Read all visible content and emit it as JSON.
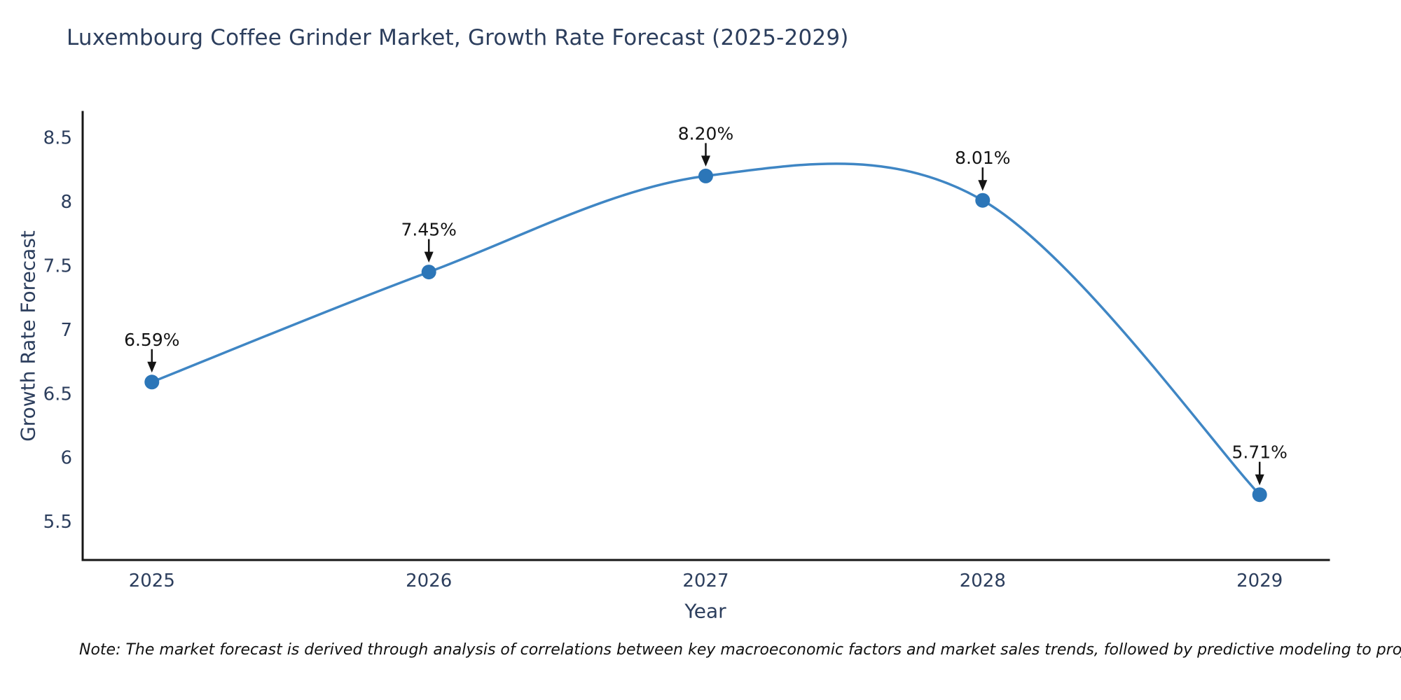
{
  "note": {
    "text": "Note: The market forecast is derived through analysis of correlations between key macroeconomic factors and market sales trends, followed by predictive modeling to project future sales"
  },
  "chart_data": {
    "type": "line",
    "title": "Luxembourg Coffee Grinder Market, Growth Rate Forecast (2025-2029)",
    "xlabel": "Year",
    "ylabel": "Growth Rate Forecast",
    "x": [
      2025,
      2026,
      2027,
      2028,
      2029
    ],
    "series": [
      {
        "name": "Growth Rate Forecast",
        "values": [
          6.59,
          7.45,
          8.2,
          8.01,
          5.71
        ]
      }
    ],
    "point_labels": [
      "6.59%",
      "7.45%",
      "8.20%",
      "8.01%",
      "5.71%"
    ],
    "xlim": [
      2024.75,
      2029.25
    ],
    "ylim": [
      5.2,
      8.7
    ],
    "xticks": {
      "values": [
        2025,
        2026,
        2027,
        2028,
        2029
      ],
      "labels": [
        "2025",
        "2026",
        "2027",
        "2028",
        "2029"
      ]
    },
    "yticks": {
      "values": [
        5.5,
        6,
        6.5,
        7,
        7.5,
        8,
        8.5
      ],
      "labels": [
        "5.5",
        "6",
        "6.5",
        "7",
        "7.5",
        "8",
        "8.5"
      ]
    },
    "grid": false,
    "legend_position": "none",
    "line_shape": "spline",
    "colors": {
      "line": "#3f86c4",
      "marker": "#2c76b8",
      "axis": "#161616",
      "tick_text": "#2c3e5d",
      "title_text": "#2c3e5d",
      "annotation": "#141414",
      "background": "#ffffff"
    }
  }
}
